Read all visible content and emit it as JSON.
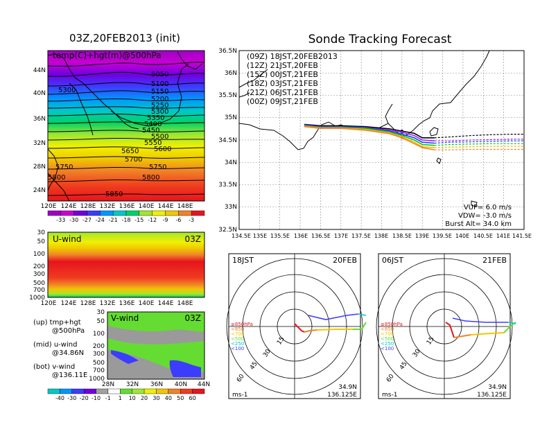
{
  "page": {
    "left_title": "03Z,20FEB2013 (init)",
    "right_title": "Sonde Tracking Forecast"
  },
  "top_map": {
    "label": "temp(C)+hgt(m)@500hPa",
    "lat_ticks": [
      "44N",
      "40N",
      "36N",
      "32N",
      "28N",
      "24N"
    ],
    "lon_ticks": [
      "120E",
      "124E",
      "128E",
      "132E",
      "136E",
      "140E",
      "144E",
      "148E"
    ],
    "contours": [
      "5050",
      "5100",
      "5150",
      "5200",
      "5250",
      "5300",
      "5350",
      "5400",
      "5450",
      "5500",
      "5550",
      "5600",
      "5650",
      "5700",
      "5750",
      "5800",
      "5850",
      "5300",
      "5750",
      "5800"
    ],
    "colorbar": [
      "-33",
      "-30",
      "-27",
      "-24",
      "-21",
      "-18",
      "-15",
      "-12",
      "-9",
      "-6",
      "-3"
    ]
  },
  "u_panel": {
    "label": "U-wind",
    "time": "03Z",
    "y_ticks": [
      "30",
      "50",
      "100",
      "200",
      "300",
      "500",
      "700",
      "1000"
    ],
    "x_ticks": [
      "120E",
      "124E",
      "128E",
      "132E",
      "136E",
      "140E",
      "144E",
      "148E"
    ]
  },
  "v_panel": {
    "label": "V-wind",
    "time": "03Z",
    "y_ticks": [
      "30",
      "50",
      "100",
      "200",
      "300",
      "500",
      "700",
      "1000"
    ],
    "x_ticks": [
      "28N",
      "32N",
      "36N",
      "40N",
      "44N"
    ],
    "colorbar": [
      "-40",
      "-30",
      "-20",
      "-10",
      "-1",
      "1",
      "10",
      "20",
      "30",
      "40",
      "50",
      "60"
    ]
  },
  "notes": [
    {
      "a": "(up) tmp+hgt",
      "b": "@500hPa"
    },
    {
      "a": "(mid) u-wind",
      "b": "@34.86N"
    },
    {
      "a": "(bot) v-wind",
      "b": "@136.11E"
    }
  ],
  "track_map": {
    "lat_ticks": [
      "36.5N",
      "36N",
      "35.5N",
      "35N",
      "34.5N",
      "34N",
      "33.5N",
      "33N",
      "32.5N"
    ],
    "lon_ticks": [
      "134.5E",
      "135E",
      "135.5E",
      "136E",
      "136.5E",
      "137E",
      "137.5E",
      "138E",
      "138.5E",
      "139E",
      "139.5E",
      "140E",
      "140.5E",
      "141E",
      "141.5E"
    ],
    "legend": [
      {
        "text": "(09Z)  18JST,20FEB2013",
        "color": "#000000"
      },
      {
        "text": "(12Z)  21JST,20FEB",
        "color": "#a020f0"
      },
      {
        "text": "(15Z)  00JST,21FEB",
        "color": "#1e3cff"
      },
      {
        "text": "(18Z)  03JST,21FEB",
        "color": "#00c800"
      },
      {
        "text": "(21Z)  06JST,21FEB",
        "color": "#f0b400"
      },
      {
        "text": "(00Z)  09JST,21FEB",
        "color": "#f08228"
      }
    ],
    "stats": [
      "VUP=  6.0  m/s",
      "VDW= -3.0  m/s",
      "Burst Alt= 34.0  km"
    ]
  },
  "chart_data": [
    {
      "type": "line",
      "title": "Sonde Tracking Forecast",
      "xlim": [
        134.5,
        141.5
      ],
      "ylim": [
        32.5,
        36.5
      ],
      "series": [
        {
          "name": "(09Z)  18JST,20FEB2013",
          "color": "#000000",
          "x": [
            136.1,
            136.5,
            137.0,
            137.6,
            138.2,
            138.5,
            138.8,
            139.0,
            139.3,
            139.7,
            140.2,
            140.7,
            141.2,
            141.5
          ],
          "y": [
            34.85,
            34.82,
            34.82,
            34.8,
            34.75,
            34.7,
            34.65,
            34.55,
            34.55,
            34.57,
            34.6,
            34.62,
            34.63,
            34.63
          ]
        },
        {
          "name": "(12Z)  21JST,20FEB",
          "color": "#a020f0",
          "x": [
            136.1,
            136.5,
            137.0,
            137.6,
            138.2,
            138.5,
            138.8,
            139.0,
            139.3,
            139.7,
            140.2,
            140.7,
            141.2,
            141.5
          ],
          "y": [
            34.84,
            34.8,
            34.8,
            34.78,
            34.72,
            34.67,
            34.6,
            34.5,
            34.48,
            34.48,
            34.5,
            34.51,
            34.52,
            34.52
          ]
        },
        {
          "name": "(15Z)  00JST,21FEB",
          "color": "#1e3cff",
          "x": [
            136.1,
            136.5,
            137.0,
            137.6,
            138.2,
            138.5,
            138.8,
            139.0,
            139.3,
            139.7,
            140.2,
            140.7,
            141.2,
            141.5
          ],
          "y": [
            34.83,
            34.79,
            34.79,
            34.77,
            34.7,
            34.63,
            34.55,
            34.45,
            34.43,
            34.45,
            34.46,
            34.47,
            34.48,
            34.48
          ]
        },
        {
          "name": "(18Z)  03JST,21FEB",
          "color": "#00c800",
          "x": [
            136.1,
            136.5,
            137.0,
            137.6,
            138.2,
            138.5,
            138.8,
            139.0,
            139.3,
            139.7,
            140.2,
            140.7,
            141.2,
            141.5
          ],
          "y": [
            34.82,
            34.78,
            34.78,
            34.76,
            34.68,
            34.6,
            34.5,
            34.4,
            34.38,
            34.4,
            34.41,
            34.42,
            34.42,
            34.42
          ]
        },
        {
          "name": "(21Z)  06JST,21FEB",
          "color": "#f0b400",
          "x": [
            136.1,
            136.5,
            137.0,
            137.6,
            138.2,
            138.5,
            138.8,
            139.0,
            139.3,
            139.7,
            140.2,
            140.7,
            141.2,
            141.5
          ],
          "y": [
            34.81,
            34.77,
            34.77,
            34.74,
            34.66,
            34.57,
            34.45,
            34.35,
            34.33,
            34.34,
            34.35,
            34.36,
            34.36,
            34.36
          ]
        },
        {
          "name": "(00Z)  09JST,21FEB",
          "color": "#f08228",
          "x": [
            136.1,
            136.5,
            137.0,
            137.6,
            138.2,
            138.5,
            138.8,
            139.0,
            139.3,
            139.7,
            140.2,
            140.7,
            141.2,
            141.5
          ],
          "y": [
            34.8,
            34.76,
            34.76,
            34.72,
            34.64,
            34.55,
            34.42,
            34.33,
            34.28,
            34.28,
            34.29,
            34.29,
            34.29,
            34.29
          ]
        }
      ]
    },
    {
      "type": "hodograph",
      "panel": "18JST",
      "date": "20FEB",
      "rings": [
        "15",
        "30",
        "45",
        "60"
      ],
      "levels": [
        "≥850hPa",
        "<850",
        "<700",
        "<500",
        "<250",
        "<100"
      ],
      "units": "ms-1",
      "location": [
        "34.9N",
        "136.125E"
      ]
    },
    {
      "type": "hodograph",
      "panel": "06JST",
      "date": "21FEB",
      "rings": [
        "15",
        "30",
        "45",
        "60"
      ],
      "levels": [
        "≥850hPa",
        "<850",
        "<700",
        "<500",
        "<250",
        "<100"
      ],
      "units": "ms-1",
      "location": [
        "34.9N",
        "136.125E"
      ]
    }
  ]
}
